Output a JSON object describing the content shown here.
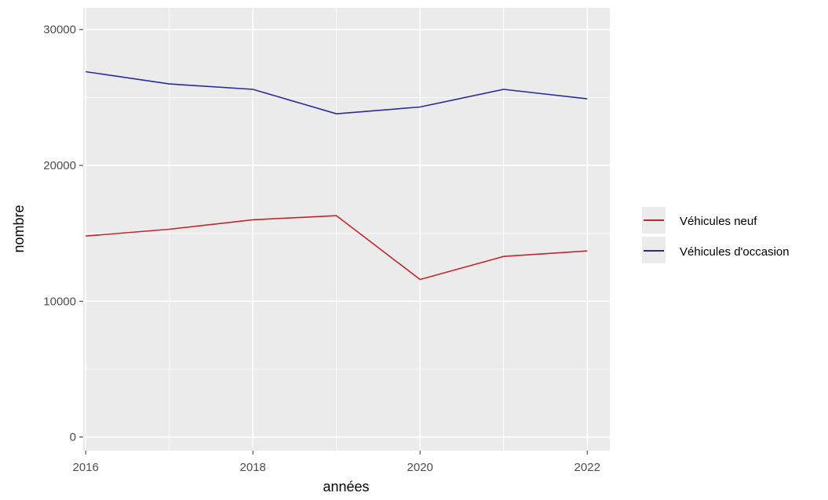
{
  "chart_data": {
    "type": "line",
    "title": "",
    "xlabel": "années",
    "ylabel": "nombre",
    "x": [
      2016,
      2017,
      2018,
      2019,
      2020,
      2021,
      2022
    ],
    "x_ticks": [
      2016,
      2018,
      2020,
      2022
    ],
    "x_tick_labels": [
      "2016",
      "2018",
      "2020",
      "2022"
    ],
    "xlim": [
      2015.97,
      2022.27
    ],
    "y_ticks": [
      0,
      10000,
      20000,
      30000
    ],
    "y_tick_labels": [
      "0",
      "10000",
      "20000",
      "30000"
    ],
    "ylim": [
      -1000,
      31600
    ],
    "grid": true,
    "legend_position": "right",
    "panel_background": "#ebebeb",
    "series": [
      {
        "name": "Véhicules neuf",
        "color": "#c0272d",
        "values": [
          14800,
          15300,
          16000,
          16300,
          11600,
          13300,
          13700
        ]
      },
      {
        "name": "Véhicules d'occasion",
        "color": "#2b2b9e",
        "values": [
          26900,
          26000,
          25600,
          23800,
          24300,
          25600,
          24900
        ]
      }
    ]
  }
}
